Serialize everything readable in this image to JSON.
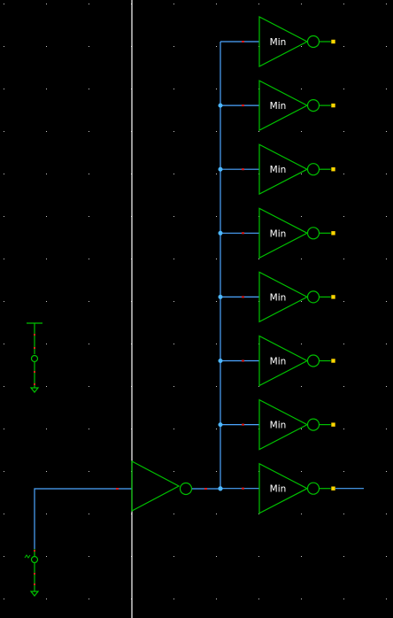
{
  "schematic": {
    "inverter_label": "Min",
    "fanout_count": 8,
    "colors": {
      "background": "#000000",
      "grid_dot": "#c8c8c8",
      "gate": "#00c000",
      "wire": "#4da6ff",
      "vertical_divider": "#ffffff",
      "pin_red": "#e02020",
      "junction": "#4db8ff",
      "output_pin": "#ffd700"
    },
    "components": {
      "voltage_source_top": "dc-voltage-source-icon",
      "voltage_source_bottom": "pulse-voltage-source-icon",
      "driver": "driver-inverter-icon",
      "loads": "load-inverter-icon"
    }
  }
}
